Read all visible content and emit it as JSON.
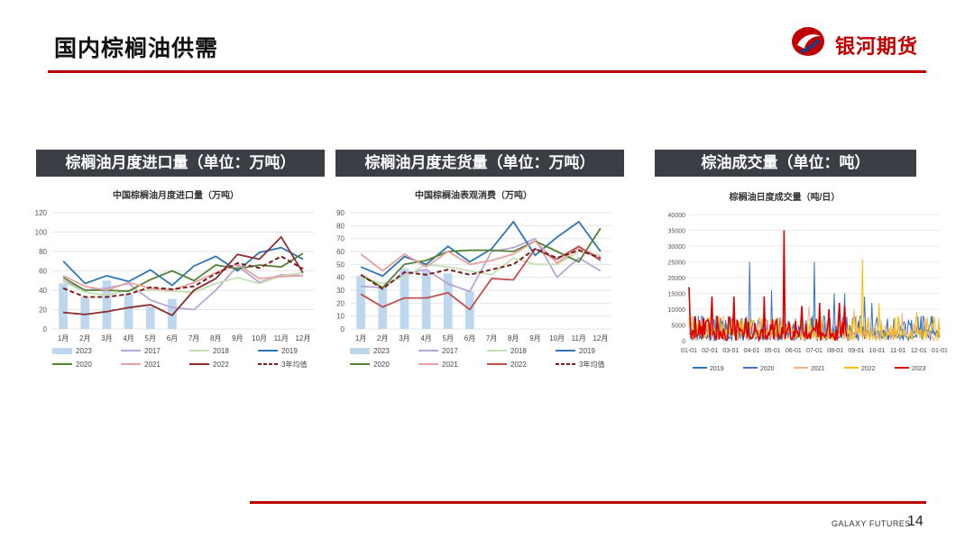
{
  "slide": {
    "title": "国内棕榈油供需",
    "brand": "银河期货",
    "footer_brand": "GALAXY FUTURES",
    "page_number": "14",
    "accent_color": "#c00000"
  },
  "sections": [
    {
      "label": "棕榈油月度进口量（单位：万吨）"
    },
    {
      "label": "棕榈油月度走货量（单位：万吨）"
    },
    {
      "label": "棕油成交量（单位：吨）"
    }
  ],
  "chart_data": [
    {
      "type": "bar+line",
      "title": "中国棕榈油月度进口量（万吨）",
      "categories": [
        "1月",
        "2月",
        "3月",
        "4月",
        "5月",
        "6月",
        "7月",
        "8月",
        "9月",
        "10月",
        "11月",
        "12月"
      ],
      "ylim": [
        0,
        120
      ],
      "yticks": [
        0,
        20,
        40,
        60,
        80,
        100,
        120
      ],
      "bar_series": {
        "name": "2023",
        "color": "#bdd7ee",
        "values": [
          47,
          33,
          50,
          36,
          23,
          31
        ]
      },
      "series": [
        {
          "name": "2017",
          "color": "#b4a7d6",
          "values": [
            50,
            40,
            42,
            47,
            30,
            22,
            20,
            40,
            65,
            48,
            56,
            55
          ]
        },
        {
          "name": "2018",
          "color": "#c5e0b4",
          "values": [
            49,
            38,
            35,
            40,
            40,
            39,
            38,
            47,
            53,
            47,
            55,
            58
          ]
        },
        {
          "name": "2019",
          "color": "#2e75b6",
          "values": [
            70,
            47,
            55,
            49,
            61,
            45,
            65,
            75,
            60,
            79,
            84,
            72
          ]
        },
        {
          "name": "2020",
          "color": "#548235",
          "values": [
            53,
            40,
            40,
            39,
            51,
            60,
            50,
            66,
            62,
            66,
            64,
            78
          ]
        },
        {
          "name": "2021",
          "color": "#e6a0a0",
          "values": [
            55,
            44,
            40,
            48,
            42,
            40,
            48,
            58,
            67,
            52,
            54,
            55
          ]
        },
        {
          "name": "2022",
          "color": "#8b2e2e",
          "values": [
            17,
            15,
            18,
            22,
            25,
            14,
            40,
            52,
            77,
            72,
            95,
            58
          ]
        },
        {
          "name": "3年均值",
          "color": "#7b1f1f",
          "dashed": true,
          "values": [
            42,
            33,
            33,
            36,
            43,
            41,
            44,
            57,
            68,
            63,
            75,
            62
          ]
        }
      ]
    },
    {
      "type": "bar+line",
      "title": "中国棕榈油表观消费（万吨）",
      "categories": [
        "1月",
        "2月",
        "3月",
        "4月",
        "5月",
        "6月",
        "7月",
        "8月",
        "9月",
        "10月",
        "11月",
        "12月"
      ],
      "ylim": [
        0,
        90
      ],
      "yticks": [
        0,
        10,
        20,
        30,
        40,
        50,
        60,
        70,
        80,
        90
      ],
      "bar_series": {
        "name": "2023",
        "color": "#bdd7ee",
        "values": [
          41,
          32,
          47,
          45,
          43,
          29
        ]
      },
      "series": [
        {
          "name": "2017",
          "color": "#b4a7d6",
          "values": [
            33,
            32,
            43,
            46,
            35,
            29,
            60,
            63,
            70,
            40,
            55,
            45
          ]
        },
        {
          "name": "2018",
          "color": "#c5e0b4",
          "values": [
            40,
            35,
            40,
            50,
            48,
            45,
            42,
            55,
            50,
            50,
            60,
            57
          ]
        },
        {
          "name": "2019",
          "color": "#2e75b6",
          "values": [
            48,
            41,
            56,
            50,
            64,
            52,
            62,
            83,
            57,
            71,
            83,
            60
          ]
        },
        {
          "name": "2020",
          "color": "#548235",
          "values": [
            42,
            32,
            50,
            53,
            60,
            61,
            61,
            60,
            68,
            60,
            52,
            78
          ]
        },
        {
          "name": "2021",
          "color": "#e6a0a0",
          "values": [
            58,
            45,
            58,
            48,
            60,
            50,
            53,
            58,
            68,
            51,
            63,
            55
          ]
        },
        {
          "name": "2022",
          "color": "#c0504d",
          "values": [
            27,
            17,
            24,
            24,
            28,
            15,
            39,
            38,
            62,
            54,
            64,
            53
          ]
        },
        {
          "name": "3年均值",
          "color": "#7b1f1f",
          "dashed": true,
          "values": [
            42,
            31,
            44,
            42,
            46,
            42,
            46,
            50,
            62,
            55,
            61,
            55
          ]
        }
      ]
    },
    {
      "type": "line",
      "title": "棕榈油日度成交量（吨/日）",
      "categories": [
        "01-01",
        "02-01",
        "03-01",
        "04-01",
        "05-01",
        "06-01",
        "07-01",
        "08-01",
        "09-01",
        "10-01",
        "11-01",
        "12-01",
        "01-01"
      ],
      "ylim": [
        0,
        40000
      ],
      "yticks": [
        0,
        5000,
        10000,
        15000,
        20000,
        25000,
        30000,
        35000,
        40000
      ],
      "series": [
        {
          "name": "2019",
          "color": "#2e75b6"
        },
        {
          "name": "2020",
          "color": "#4472c4"
        },
        {
          "name": "2021",
          "color": "#f4b183"
        },
        {
          "name": "2022",
          "color": "#ffc000"
        },
        {
          "name": "2023",
          "color": "#e00000"
        }
      ]
    }
  ]
}
